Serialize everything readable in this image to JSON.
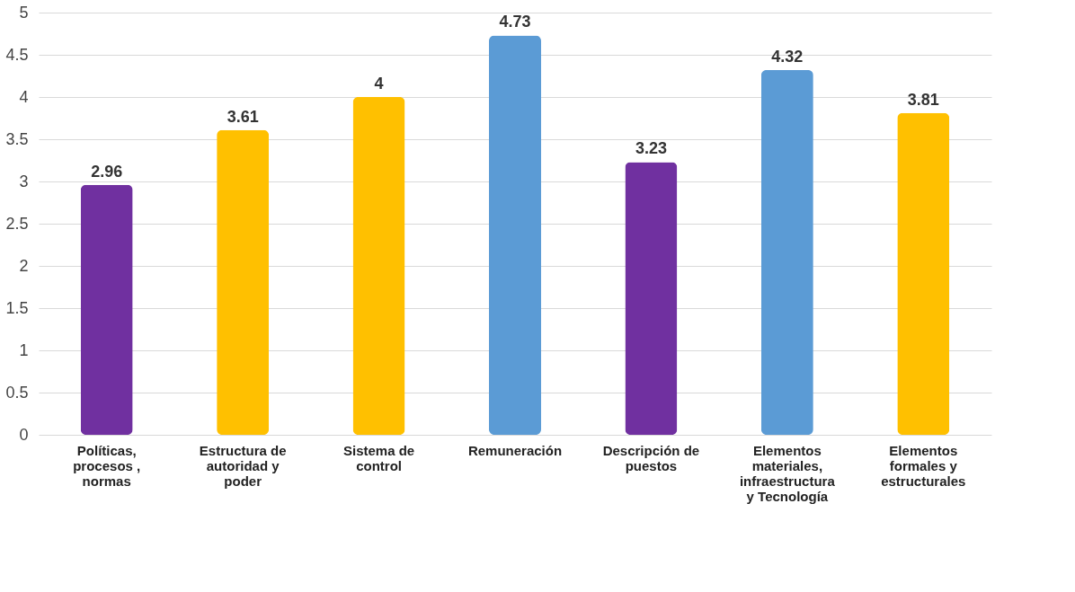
{
  "chart_data": {
    "type": "bar",
    "categories": [
      "Políticas, procesos , normas",
      "Estructura de autoridad y poder",
      "Sistema de control",
      "Remuneración",
      "Descripción de puestos",
      "Elementos materiales, infraestructura y Tecnología",
      "Elementos formales y estructurales"
    ],
    "values": [
      2.96,
      3.61,
      4,
      4.73,
      3.23,
      4.32,
      3.81
    ],
    "colors": [
      "#7030a0",
      "#ffc000",
      "#ffc000",
      "#5b9bd5",
      "#7030a0",
      "#5b9bd5",
      "#ffc000"
    ],
    "ylim": [
      0,
      5
    ],
    "yticks": [
      0,
      0.5,
      1,
      1.5,
      2,
      2.5,
      3,
      3.5,
      4,
      4.5,
      5
    ],
    "grid": "y",
    "data_labels": true
  }
}
